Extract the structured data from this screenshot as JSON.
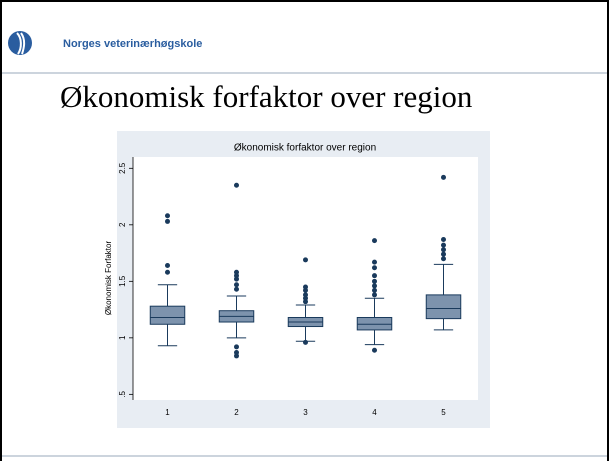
{
  "header": {
    "org": "Norges veterinærhøgskole",
    "slide_title": "Økonomisk forfaktor over region"
  },
  "chart_data": {
    "type": "box",
    "title": "Økonomisk forfaktor over region",
    "y_label": "Økonomisk Forfaktor",
    "categories": [
      "1",
      "2",
      "3",
      "4",
      "5"
    ],
    "box_color": "#7d93ad",
    "point_color": "#1a3a5c",
    "boxes": [
      {
        "min": 0.93,
        "q1": 1.12,
        "median": 1.18,
        "q3": 1.28,
        "max": 1.47,
        "outliers": [
          1.58,
          1.64,
          2.03,
          2.08
        ]
      },
      {
        "min": 1.0,
        "q1": 1.14,
        "median": 1.19,
        "q3": 1.24,
        "max": 1.37,
        "outliers": [
          0.84,
          0.87,
          0.92,
          1.43,
          1.47,
          1.52,
          1.55,
          1.58,
          2.35
        ]
      },
      {
        "min": 0.97,
        "q1": 1.1,
        "median": 1.14,
        "q3": 1.18,
        "max": 1.29,
        "outliers": [
          0.96,
          1.32,
          1.35,
          1.38,
          1.42,
          1.45,
          1.69
        ]
      },
      {
        "min": 0.94,
        "q1": 1.07,
        "median": 1.12,
        "q3": 1.18,
        "max": 1.35,
        "outliers": [
          0.89,
          1.38,
          1.42,
          1.46,
          1.5,
          1.55,
          1.62,
          1.67,
          1.86
        ]
      },
      {
        "min": 1.07,
        "q1": 1.17,
        "median": 1.26,
        "q3": 1.38,
        "max": 1.65,
        "outliers": [
          1.7,
          1.74,
          1.78,
          1.82,
          1.87,
          2.42
        ]
      }
    ],
    "ylim": [
      0.45,
      2.6
    ],
    "yticks": [
      {
        "value": 0.5,
        "label": ".5"
      },
      1,
      1.5,
      2,
      2.5
    ]
  }
}
